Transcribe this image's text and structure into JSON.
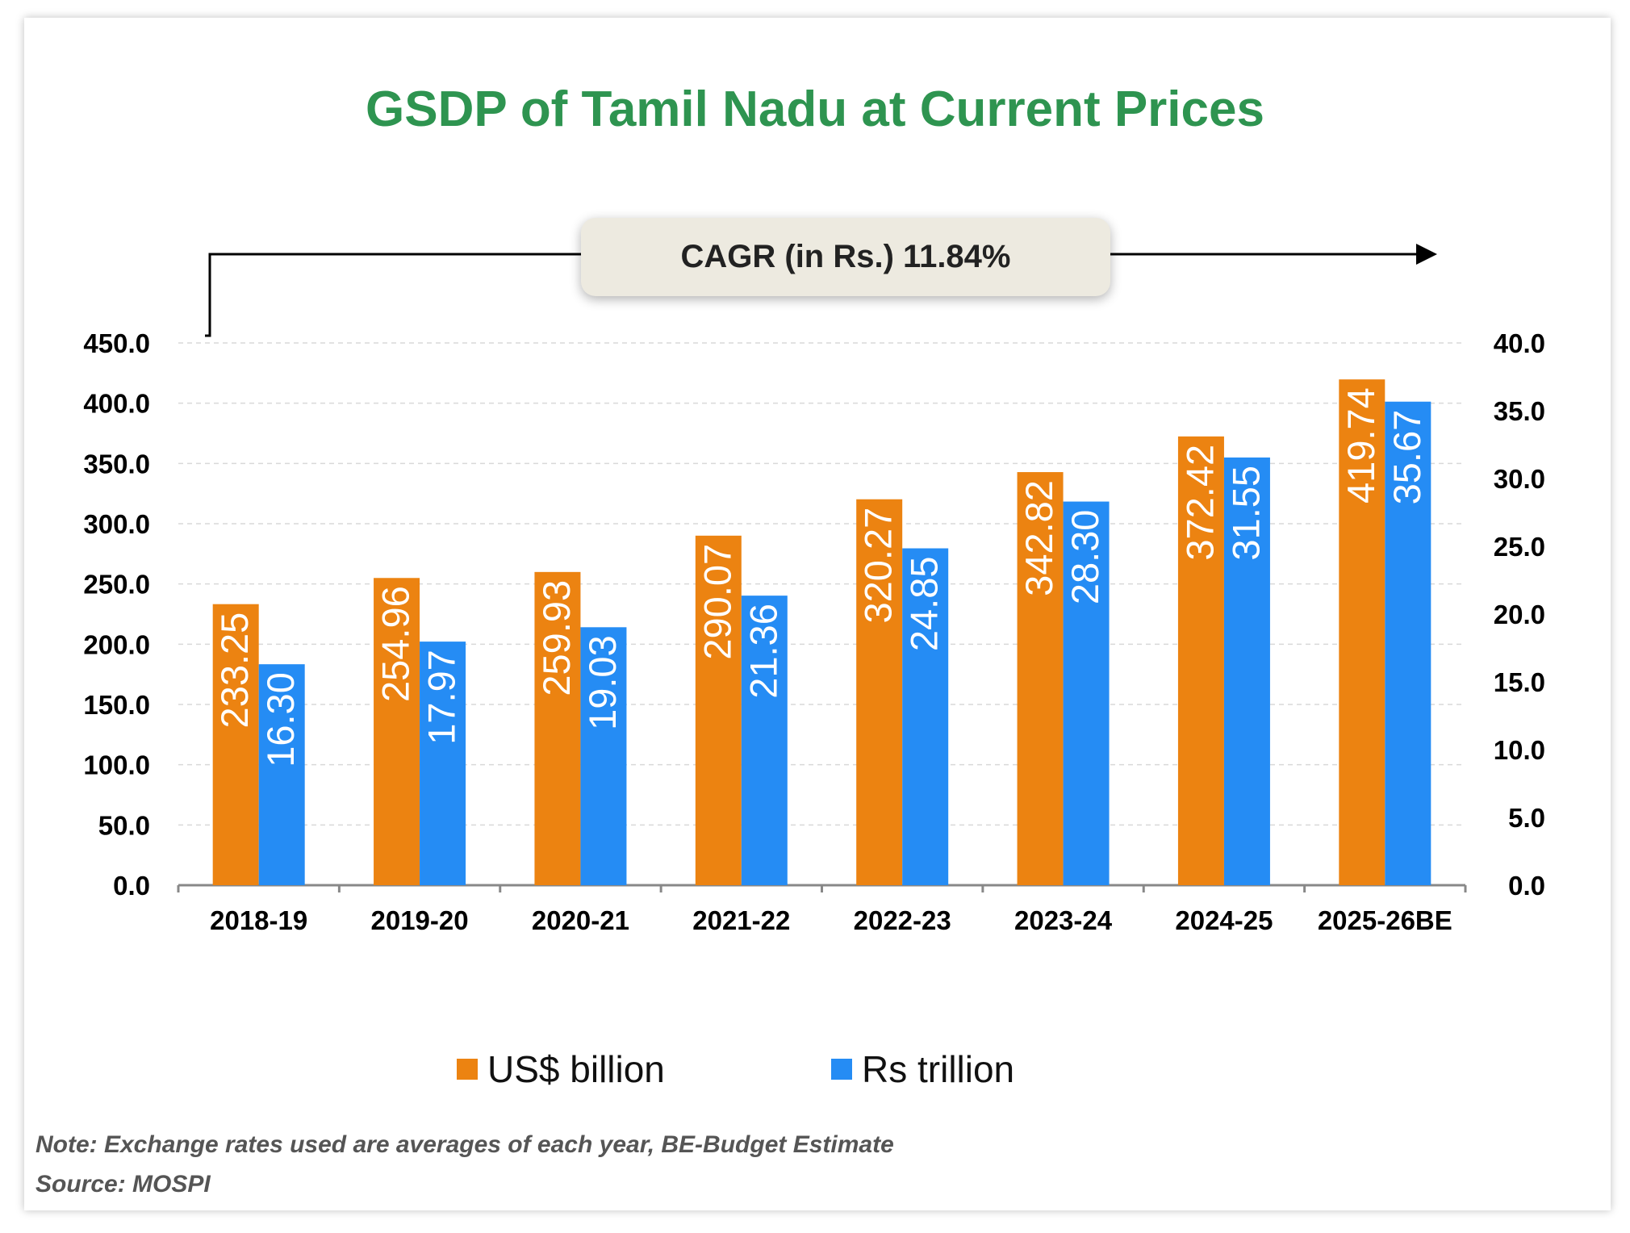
{
  "chart_data": {
    "type": "bar",
    "title": "GSDP of Tamil Nadu at Current Prices",
    "categories": [
      "2018-19",
      "2019-20",
      "2020-21",
      "2021-22",
      "2022-23",
      "2023-24",
      "2024-25",
      "2025-26BE"
    ],
    "series": [
      {
        "name": "US$ billion",
        "axis": "left",
        "color": "#ec8311",
        "values": [
          233.25,
          254.96,
          259.93,
          290.07,
          320.27,
          342.82,
          372.42,
          419.74
        ],
        "labels": [
          "233.25",
          "254.96",
          "259.93",
          "290.07",
          "320.27",
          "342.82",
          "372.42",
          "419.74"
        ]
      },
      {
        "name": "Rs trillion",
        "axis": "right",
        "color": "#258cf4",
        "values": [
          16.3,
          17.97,
          19.03,
          21.36,
          24.85,
          28.3,
          31.55,
          35.67
        ],
        "labels": [
          "16.30",
          "17.97",
          "19.03",
          "21.36",
          "24.85",
          "28.30",
          "31.55",
          "35.67"
        ]
      }
    ],
    "y_left": {
      "range": [
        0,
        450
      ],
      "ticks": [
        "0.0",
        "50.0",
        "100.0",
        "150.0",
        "200.0",
        "250.0",
        "300.0",
        "350.0",
        "400.0",
        "450.0"
      ]
    },
    "y_right": {
      "range": [
        0,
        40
      ],
      "ticks": [
        "0.0",
        "5.0",
        "10.0",
        "15.0",
        "20.0",
        "25.0",
        "30.0",
        "35.0",
        "40.0"
      ]
    },
    "grid": true,
    "legend_placement": "bottom",
    "annotation": "CAGR (in Rs.) 11.84%"
  },
  "notes": {
    "note": "Note: Exchange rates used are averages of each year, BE-Budget Estimate",
    "source": "Source: MOSPI"
  },
  "colors": {
    "title": "#2e9450",
    "usd": "#ec8311",
    "rs": "#258cf4",
    "annotation_bg": "#edeae0"
  }
}
